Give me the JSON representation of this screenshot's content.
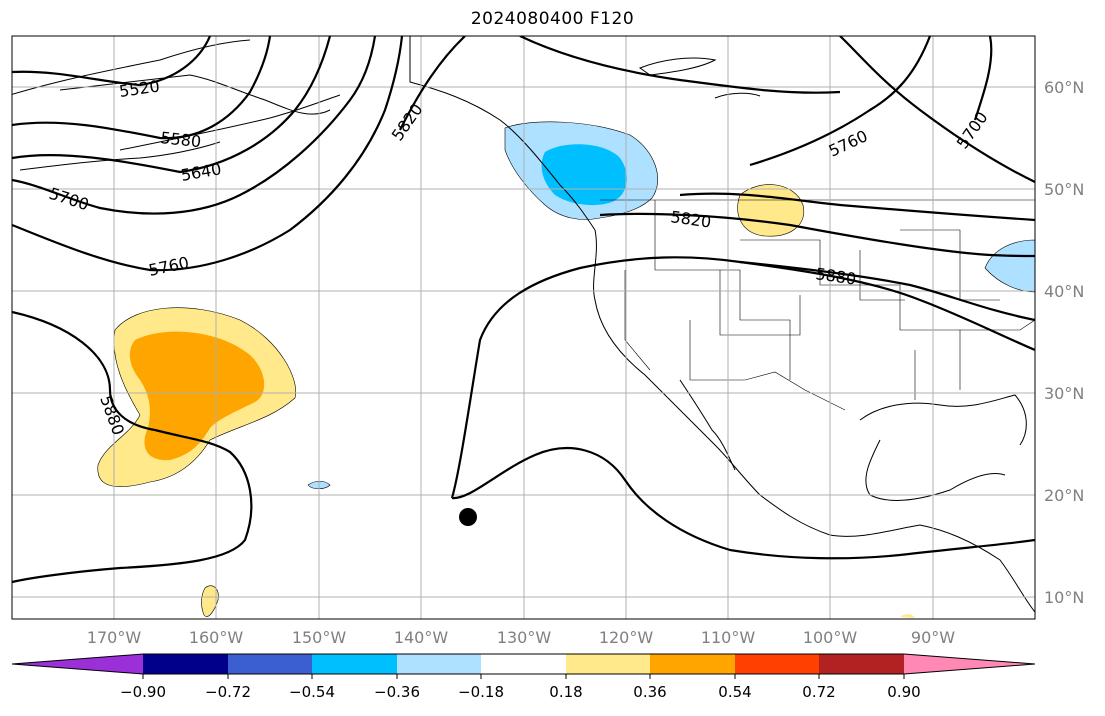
{
  "title": "2024080400 F120",
  "map": {
    "lon_labels": [
      "170°W",
      "160°W",
      "150°W",
      "140°W",
      "130°W",
      "120°W",
      "110°W",
      "100°W",
      "90°W"
    ],
    "lat_labels": [
      "60°N",
      "50°N",
      "40°N",
      "30°N",
      "20°N",
      "10°N"
    ],
    "contour_labels": [
      "5520",
      "5580",
      "5640",
      "5700",
      "5760",
      "5820",
      "5880",
      "5820",
      "5880",
      "5760",
      "5700"
    ],
    "marker": "storm-center-dot"
  },
  "colorbar": {
    "ticks": [
      "−0.90",
      "−0.72",
      "−0.54",
      "−0.36",
      "−0.18",
      "0.18",
      "0.36",
      "0.54",
      "0.72",
      "0.90"
    ],
    "colors": [
      "#9b30d9",
      "#00008b",
      "#3b5fd1",
      "#00bfff",
      "#aee0ff",
      "#ffffff",
      "#ffe98a",
      "#ffa500",
      "#ff4000",
      "#b22222",
      "#ff88b4"
    ]
  },
  "colors": {
    "positive_light": "#ffe98a",
    "positive_mid": "#ffa500",
    "negative_light": "#aee0ff",
    "negative_mid": "#00bfff"
  }
}
